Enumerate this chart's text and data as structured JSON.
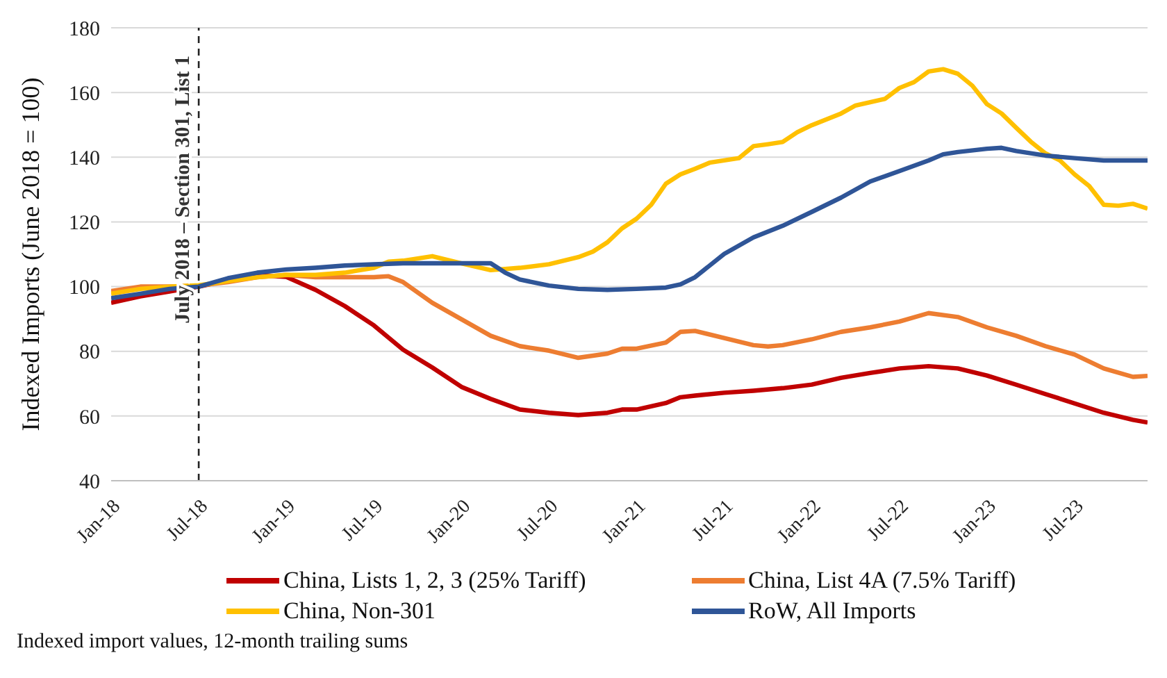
{
  "chart_data": {
    "type": "line",
    "ylabel": "Indexed Imports (June 2018 = 100)",
    "xlim": [
      "2018-01",
      "2023-12"
    ],
    "ylim": [
      40,
      180
    ],
    "yticks": [
      40,
      60,
      80,
      100,
      120,
      140,
      160,
      180
    ],
    "xticks": [
      {
        "value": "2018-01",
        "label": "Jan-18"
      },
      {
        "value": "2018-07",
        "label": "Jul-18"
      },
      {
        "value": "2019-01",
        "label": "Jan-19"
      },
      {
        "value": "2019-07",
        "label": "Jul-19"
      },
      {
        "value": "2020-01",
        "label": "Jan-20"
      },
      {
        "value": "2020-07",
        "label": "Jul-20"
      },
      {
        "value": "2021-01",
        "label": "Jan-21"
      },
      {
        "value": "2021-07",
        "label": "Jul-21"
      },
      {
        "value": "2022-01",
        "label": "Jan-22"
      },
      {
        "value": "2022-07",
        "label": "Jul-22"
      },
      {
        "value": "2023-01",
        "label": "Jan-23"
      },
      {
        "value": "2023-07",
        "label": "Jul-23"
      }
    ],
    "grid": "y",
    "legend": "bottom",
    "line_style": "solid",
    "ref_lines": [
      {
        "axis": "x",
        "value": "2018-07",
        "label": "July 2018 – Section 301, List 1",
        "color": "#222222",
        "line_style": "dashed"
      }
    ],
    "annotations": [
      "Indexed import values, 12-month trailing sums"
    ],
    "series": [
      {
        "name": "China, Lists 1, 2, 3 (25% Tariff)",
        "color": "#c00000",
        "x": [
          "2018-01",
          "2018-03",
          "2018-05",
          "2018-07",
          "2018-09",
          "2018-11",
          "2019-01",
          "2019-03",
          "2019-05",
          "2019-07",
          "2019-09",
          "2019-11",
          "2020-01",
          "2020-03",
          "2020-05",
          "2020-07",
          "2020-09",
          "2020-11",
          "2020-12",
          "2021-01",
          "2021-03",
          "2021-04",
          "2021-05",
          "2021-07",
          "2021-09",
          "2021-11",
          "2022-01",
          "2022-03",
          "2022-05",
          "2022-07",
          "2022-09",
          "2022-11",
          "2023-01",
          "2023-03",
          "2023-05",
          "2023-07",
          "2023-09",
          "2023-11",
          "2023-12"
        ],
        "values": [
          95,
          97,
          98.5,
          100,
          102,
          103.6,
          103,
          99,
          94,
          88,
          80.5,
          75,
          69,
          65.3,
          62,
          61,
          60.3,
          61,
          62,
          62,
          64,
          65.8,
          66.3,
          67.2,
          67.8,
          68.6,
          69.7,
          71.8,
          73.3,
          74.7,
          75.4,
          74.7,
          72.5,
          69.7,
          66.8,
          63.9,
          61,
          58.8,
          58
        ]
      },
      {
        "name": "China, List 4A (7.5% Tariff)",
        "color": "#ed7d31",
        "x": [
          "2018-01",
          "2018-03",
          "2018-05",
          "2018-07",
          "2018-09",
          "2018-11",
          "2019-01",
          "2019-03",
          "2019-05",
          "2019-07",
          "2019-08",
          "2019-09",
          "2019-11",
          "2020-01",
          "2020-03",
          "2020-05",
          "2020-07",
          "2020-09",
          "2020-11",
          "2020-12",
          "2021-01",
          "2021-03",
          "2021-04",
          "2021-05",
          "2021-07",
          "2021-09",
          "2021-10",
          "2021-11",
          "2022-01",
          "2022-03",
          "2022-05",
          "2022-07",
          "2022-09",
          "2022-11",
          "2023-01",
          "2023-03",
          "2023-05",
          "2023-07",
          "2023-09",
          "2023-11",
          "2023-12"
        ],
        "values": [
          98.6,
          100,
          100,
          100.3,
          101.4,
          102.9,
          103.6,
          102.9,
          102.9,
          102.9,
          103.2,
          101.4,
          95,
          89.9,
          84.8,
          81.6,
          80.2,
          78,
          79.3,
          80.8,
          80.8,
          82.7,
          86,
          86.3,
          84.1,
          81.9,
          81.5,
          81.9,
          83.7,
          86,
          87.4,
          89.2,
          91.8,
          90.6,
          87.4,
          84.8,
          81.6,
          79,
          74.7,
          72.1,
          72.4
        ]
      },
      {
        "name": "China, Non-301",
        "color": "#ffc000",
        "x": [
          "2018-01",
          "2018-03",
          "2018-05",
          "2018-07",
          "2018-09",
          "2018-11",
          "2019-01",
          "2019-03",
          "2019-05",
          "2019-07",
          "2019-08",
          "2019-09",
          "2019-11",
          "2020-01",
          "2020-03",
          "2020-05",
          "2020-07",
          "2020-09",
          "2020-10",
          "2020-11",
          "2020-12",
          "2021-01",
          "2021-02",
          "2021-03",
          "2021-04",
          "2021-05",
          "2021-06",
          "2021-07",
          "2021-08",
          "2021-09",
          "2021-10",
          "2021-11",
          "2021-12",
          "2022-01",
          "2022-03",
          "2022-04",
          "2022-05",
          "2022-06",
          "2022-07",
          "2022-08",
          "2022-09",
          "2022-10",
          "2022-11",
          "2022-12",
          "2023-01",
          "2023-02",
          "2023-03",
          "2023-04",
          "2023-05",
          "2023-06",
          "2023-07",
          "2023-08",
          "2023-09",
          "2023-10",
          "2023-11",
          "2023-12"
        ],
        "values": [
          97.8,
          99.3,
          100,
          100.4,
          101.7,
          102.9,
          103.6,
          103.6,
          104.3,
          105.8,
          107.7,
          108,
          109.4,
          107.2,
          105.1,
          105.8,
          106.9,
          109.1,
          110.8,
          113.7,
          118,
          121,
          125.3,
          131.8,
          134.7,
          136.4,
          138.3,
          139,
          139.7,
          143.4,
          144,
          144.7,
          147.7,
          149.9,
          153.5,
          156,
          157,
          158,
          161.4,
          163.2,
          166.5,
          167.2,
          165.8,
          162.1,
          156.4,
          153.5,
          149.1,
          144.8,
          141.2,
          139,
          134.7,
          131.1,
          125.3,
          125,
          125.6,
          124.1
        ]
      },
      {
        "name": "RoW, All Imports",
        "color": "#2f5597",
        "x": [
          "2018-01",
          "2018-03",
          "2018-05",
          "2018-07",
          "2018-09",
          "2018-11",
          "2019-01",
          "2019-03",
          "2019-05",
          "2019-07",
          "2019-09",
          "2019-11",
          "2020-01",
          "2020-03",
          "2020-04",
          "2020-05",
          "2020-07",
          "2020-09",
          "2020-11",
          "2021-01",
          "2021-03",
          "2021-04",
          "2021-05",
          "2021-07",
          "2021-09",
          "2021-11",
          "2022-01",
          "2022-03",
          "2022-05",
          "2022-07",
          "2022-09",
          "2022-10",
          "2022-11",
          "2023-01",
          "2023-02",
          "2023-03",
          "2023-05",
          "2023-07",
          "2023-09",
          "2023-11",
          "2023-12"
        ],
        "values": [
          96.4,
          97.8,
          99.3,
          100,
          102.6,
          104.3,
          105.3,
          105.8,
          106.5,
          106.9,
          107.2,
          107.2,
          107.2,
          107.2,
          104.3,
          102.2,
          100.3,
          99.3,
          99,
          99.3,
          99.7,
          100.7,
          102.9,
          110.1,
          115.2,
          118.8,
          123.1,
          127.5,
          132.5,
          135.7,
          139,
          140.9,
          141.6,
          142.6,
          142.9,
          141.9,
          140.5,
          139.7,
          139,
          139,
          139
        ]
      }
    ]
  }
}
